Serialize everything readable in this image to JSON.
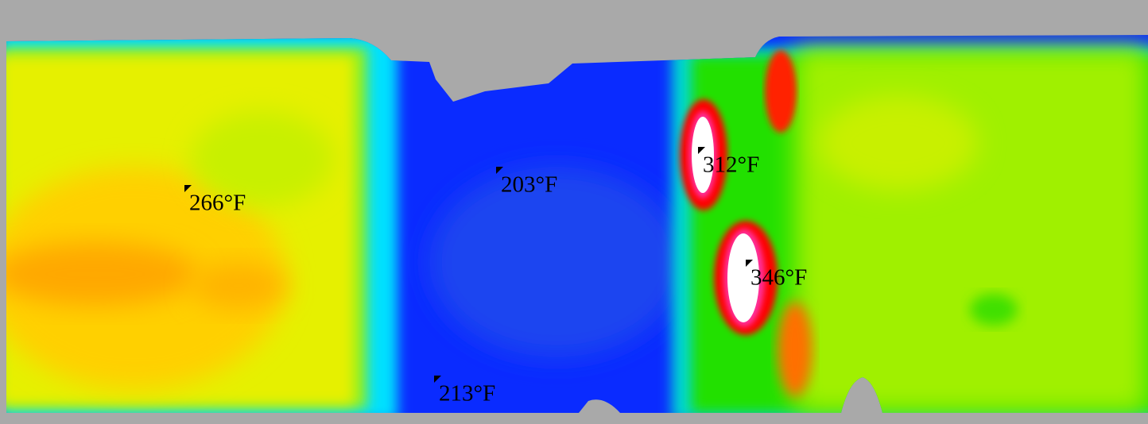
{
  "temperature_labels": [
    "266°F",
    "203°F",
    "312°F",
    "346°F",
    "213°F"
  ]
}
